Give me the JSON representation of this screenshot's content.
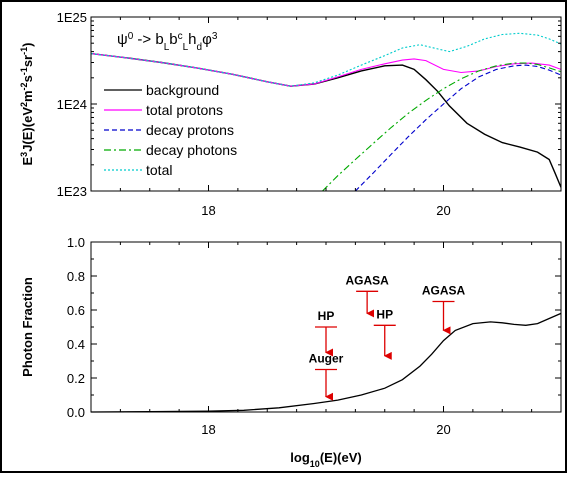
{
  "chart_data": [
    {
      "type": "line",
      "formula": {
        "base": "ψ",
        "base_sup": "0",
        "arrow": "->",
        "parts": [
          {
            "t": "b"
          },
          {
            "t": "L",
            "sub": true
          },
          {
            "t": "b"
          },
          {
            "t": "c",
            "sup": true
          },
          {
            "t": "L",
            "sub": true
          },
          {
            "t": "h"
          },
          {
            "t": "d",
            "sub": true
          },
          {
            "t": "φ"
          },
          {
            "t": "3",
            "sup": true
          }
        ]
      },
      "ylabel": {
        "parts": [
          {
            "t": "E"
          },
          {
            "t": "3",
            "sup": true
          },
          {
            "t": "J(E)(eV"
          },
          {
            "t": "2",
            "sup": true
          },
          {
            "t": "m"
          },
          {
            "t": "-2",
            "sup": true
          },
          {
            "t": "s"
          },
          {
            "t": "-1",
            "sup": true
          },
          {
            "t": "sr"
          },
          {
            "t": "-1",
            "sup": true
          },
          {
            "t": ")"
          }
        ]
      },
      "yscale": "log",
      "xlim": [
        17.0,
        21.0
      ],
      "ylim": [
        1e+23,
        1e+25
      ],
      "y_tick_labels": [
        {
          "value": 1e+25,
          "label": "1E25"
        },
        {
          "value": 1e+24,
          "label": "1E24"
        },
        {
          "value": 1e+23,
          "label": "1E23"
        }
      ],
      "x_tick_labels": [
        {
          "value": 18,
          "label": "18"
        },
        {
          "value": 20,
          "label": "20"
        }
      ],
      "legend_position": "center-left",
      "series": [
        {
          "name": "background",
          "color": "#000000",
          "dash": "solid",
          "x": [
            17.0,
            17.3,
            17.6,
            17.9,
            18.2,
            18.5,
            18.7,
            18.9,
            19.1,
            19.3,
            19.5,
            19.65,
            19.75,
            19.85,
            19.95,
            20.05,
            20.2,
            20.35,
            20.5,
            20.65,
            20.8,
            20.9,
            20.95,
            21.0
          ],
          "y": [
            3.8e+24,
            3.4e+24,
            3e+24,
            2.6e+24,
            2.2e+24,
            1.8e+24,
            1.6e+24,
            1.7e+24,
            2e+24,
            2.4e+24,
            2.75e+24,
            2.8e+24,
            2.5e+24,
            1.9e+24,
            1.4e+24,
            9.5e+23,
            6e+23,
            4.5e+23,
            3.6e+23,
            3.2e+23,
            2.8e+23,
            2.3e+23,
            1.6e+23,
            1.1e+23
          ]
        },
        {
          "name": "total protons",
          "color": "#ff00ff",
          "dash": "solid",
          "x": [
            17.0,
            17.3,
            17.6,
            17.9,
            18.2,
            18.5,
            18.7,
            18.9,
            19.1,
            19.3,
            19.5,
            19.65,
            19.75,
            19.85,
            20.0,
            20.15,
            20.3,
            20.45,
            20.6,
            20.75,
            20.9,
            21.0
          ],
          "y": [
            3.8e+24,
            3.4e+24,
            3e+24,
            2.6e+24,
            2.2e+24,
            1.8e+24,
            1.6e+24,
            1.7e+24,
            2.05e+24,
            2.5e+24,
            2.9e+24,
            3.2e+24,
            3.3e+24,
            3.15e+24,
            2.5e+24,
            2.3e+24,
            2.4e+24,
            2.7e+24,
            2.9e+24,
            2.95e+24,
            2.8e+24,
            2.5e+24
          ]
        },
        {
          "name": "decay protons",
          "color": "#0000cc",
          "dash": "dashed",
          "x": [
            19.25,
            19.4,
            19.55,
            19.7,
            19.85,
            20.0,
            20.15,
            20.3,
            20.45,
            20.6,
            20.7,
            20.8,
            20.9,
            21.0
          ],
          "y": [
            1e+23,
            1.6e+23,
            2.6e+23,
            4.2e+23,
            6.6e+23,
            1e+24,
            1.5e+24,
            2.05e+24,
            2.5e+24,
            2.75e+24,
            2.8e+24,
            2.7e+24,
            2.45e+24,
            2.15e+24
          ]
        },
        {
          "name": "decay photons",
          "color": "#00aa00",
          "dash": "dashdot",
          "x": [
            18.97,
            19.1,
            19.25,
            19.4,
            19.55,
            19.7,
            19.85,
            20.0,
            20.15,
            20.3,
            20.45,
            20.6,
            20.7,
            20.8,
            20.9,
            21.0
          ],
          "y": [
            1e+23,
            1.5e+23,
            2.3e+23,
            3.5e+23,
            5.3e+23,
            7.8e+23,
            1.1e+24,
            1.5e+24,
            1.95e+24,
            2.4e+24,
            2.75e+24,
            2.95e+24,
            2.95e+24,
            2.85e+24,
            2.6e+24,
            2.35e+24
          ]
        },
        {
          "name": "total",
          "color": "#00cccc",
          "dash": "dotted",
          "x": [
            17.0,
            17.3,
            17.6,
            17.9,
            18.2,
            18.5,
            18.7,
            18.9,
            19.1,
            19.3,
            19.5,
            19.65,
            19.8,
            19.95,
            20.05,
            20.2,
            20.35,
            20.5,
            20.65,
            20.8,
            20.9,
            21.0
          ],
          "y": [
            3.8e+24,
            3.4e+24,
            3e+24,
            2.6e+24,
            2.2e+24,
            1.8e+24,
            1.6e+24,
            1.75e+24,
            2.15e+24,
            2.8e+24,
            3.6e+24,
            4.4e+24,
            4.8e+24,
            4.3e+24,
            4e+24,
            4.6e+24,
            5.6e+24,
            6.3e+24,
            6.5e+24,
            6.2e+24,
            5.6e+24,
            4.9e+24
          ]
        }
      ]
    },
    {
      "type": "line",
      "ylabel": "Photon Fraction",
      "xlabel": {
        "parts": [
          {
            "t": "log"
          },
          {
            "t": "10",
            "sub": true
          },
          {
            "t": "(E)(eV)"
          }
        ]
      },
      "xlim": [
        17.0,
        21.0
      ],
      "ylim": [
        0.0,
        1.0
      ],
      "y_tick_labels": [
        {
          "value": 1.0,
          "label": "1.0"
        },
        {
          "value": 0.8,
          "label": "0.8"
        },
        {
          "value": 0.6,
          "label": "0.6"
        },
        {
          "value": 0.4,
          "label": "0.4"
        },
        {
          "value": 0.2,
          "label": "0.2"
        },
        {
          "value": 0.0,
          "label": "0.0"
        }
      ],
      "x_tick_labels": [
        {
          "value": 18,
          "label": "18"
        },
        {
          "value": 20,
          "label": "20"
        }
      ],
      "series": [
        {
          "color": "#000000",
          "x": [
            17.0,
            17.5,
            18.0,
            18.3,
            18.6,
            18.9,
            19.1,
            19.3,
            19.5,
            19.65,
            19.8,
            19.9,
            20.0,
            20.1,
            20.25,
            20.4,
            20.5,
            20.6,
            20.7,
            20.8,
            20.9,
            21.0
          ],
          "y": [
            0.0,
            0.002,
            0.005,
            0.01,
            0.025,
            0.05,
            0.07,
            0.1,
            0.14,
            0.19,
            0.27,
            0.34,
            0.42,
            0.48,
            0.52,
            0.53,
            0.525,
            0.515,
            0.51,
            0.52,
            0.55,
            0.58
          ]
        }
      ],
      "limits": [
        {
          "label": "HP",
          "x": 19.0,
          "y": 0.5,
          "arrow_to": 0.35
        },
        {
          "label": "Auger",
          "x": 19.0,
          "y": 0.25,
          "arrow_to": 0.09
        },
        {
          "label": "AGASA",
          "x": 19.35,
          "y": 0.71,
          "arrow_to": 0.58
        },
        {
          "label": "HP",
          "x": 19.5,
          "y": 0.51,
          "arrow_to": 0.33
        },
        {
          "label": "AGASA",
          "x": 20.0,
          "y": 0.65,
          "arrow_to": 0.48
        }
      ],
      "limit_color": "#dd0000"
    }
  ]
}
